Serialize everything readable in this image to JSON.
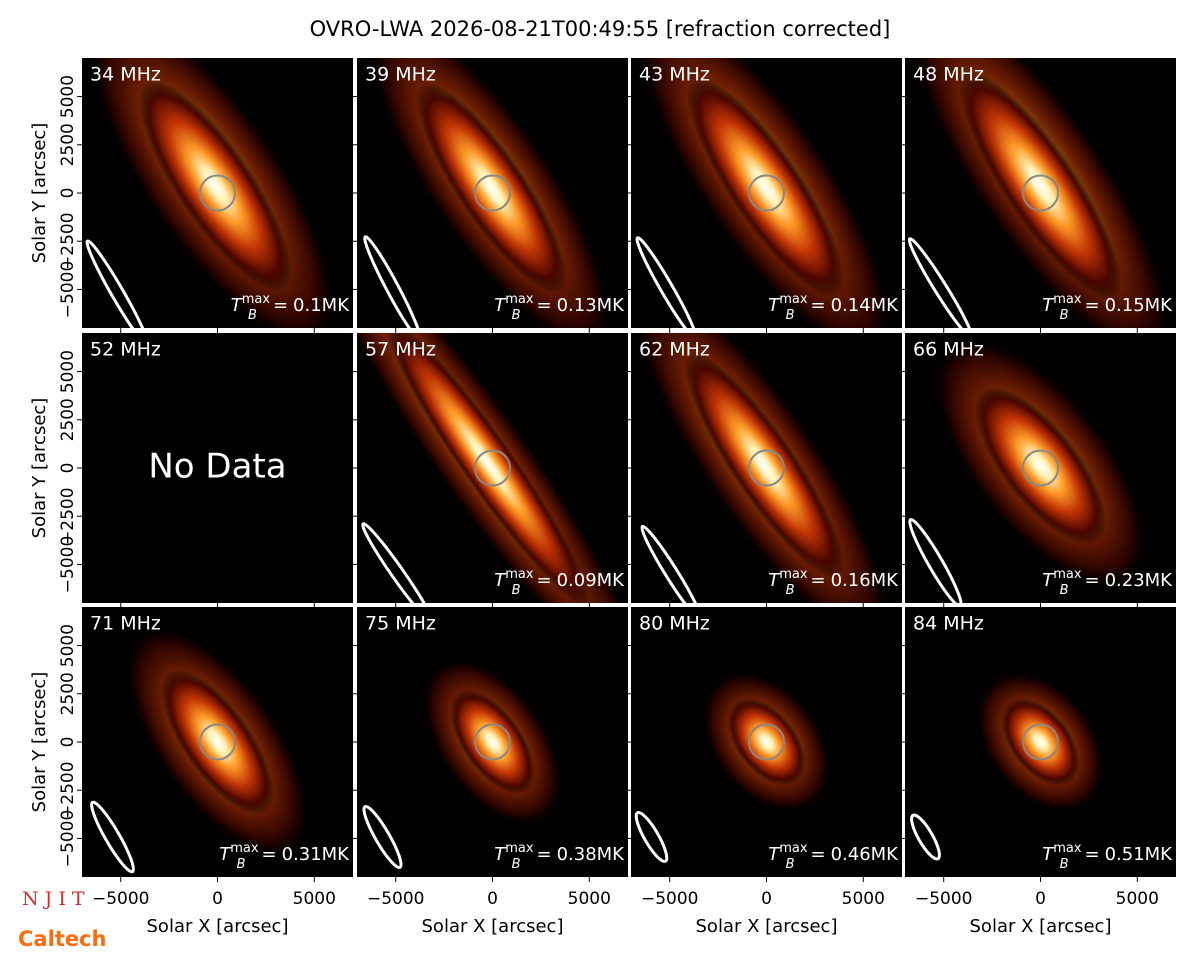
{
  "chart_data": {
    "type": "image_grid",
    "title": "OVRO-LWA 2026-08-21T00:49:55 [refraction corrected]",
    "xlabel": "Solar X [arcsec]",
    "ylabel": "Solar Y [arcsec]",
    "xlim": [
      -7000,
      7000
    ],
    "ylim": [
      -7000,
      7000
    ],
    "xticks": [
      {
        "value": -5000,
        "label": "−5000"
      },
      0,
      5000
    ],
    "yticks": [
      {
        "value": -5000,
        "label": "−5000"
      },
      {
        "value": -2500,
        "label": "−2500"
      },
      0,
      2500,
      5000
    ],
    "tb_symbol": "T",
    "tb_subscript": "B",
    "tb_superscript": "max",
    "tb_equals": "=",
    "no_data_text": "No Data",
    "panels": [
      {
        "frequency": "34 MHz",
        "tb_max": "0.1MK"
      },
      {
        "frequency": "39 MHz",
        "tb_max": "0.13MK"
      },
      {
        "frequency": "43 MHz",
        "tb_max": "0.14MK"
      },
      {
        "frequency": "48 MHz",
        "tb_max": "0.15MK"
      },
      {
        "frequency": "52 MHz",
        "tb_max": null
      },
      {
        "frequency": "57 MHz",
        "tb_max": "0.09MK"
      },
      {
        "frequency": "62 MHz",
        "tb_max": "0.16MK"
      },
      {
        "frequency": "66 MHz",
        "tb_max": "0.23MK"
      },
      {
        "frequency": "71 MHz",
        "tb_max": "0.31MK"
      },
      {
        "frequency": "75 MHz",
        "tb_max": "0.38MK"
      },
      {
        "frequency": "80 MHz",
        "tb_max": "0.46MK"
      },
      {
        "frequency": "84 MHz",
        "tb_max": "0.51MK"
      }
    ],
    "logos": [
      "N J I T",
      "Caltech"
    ]
  }
}
